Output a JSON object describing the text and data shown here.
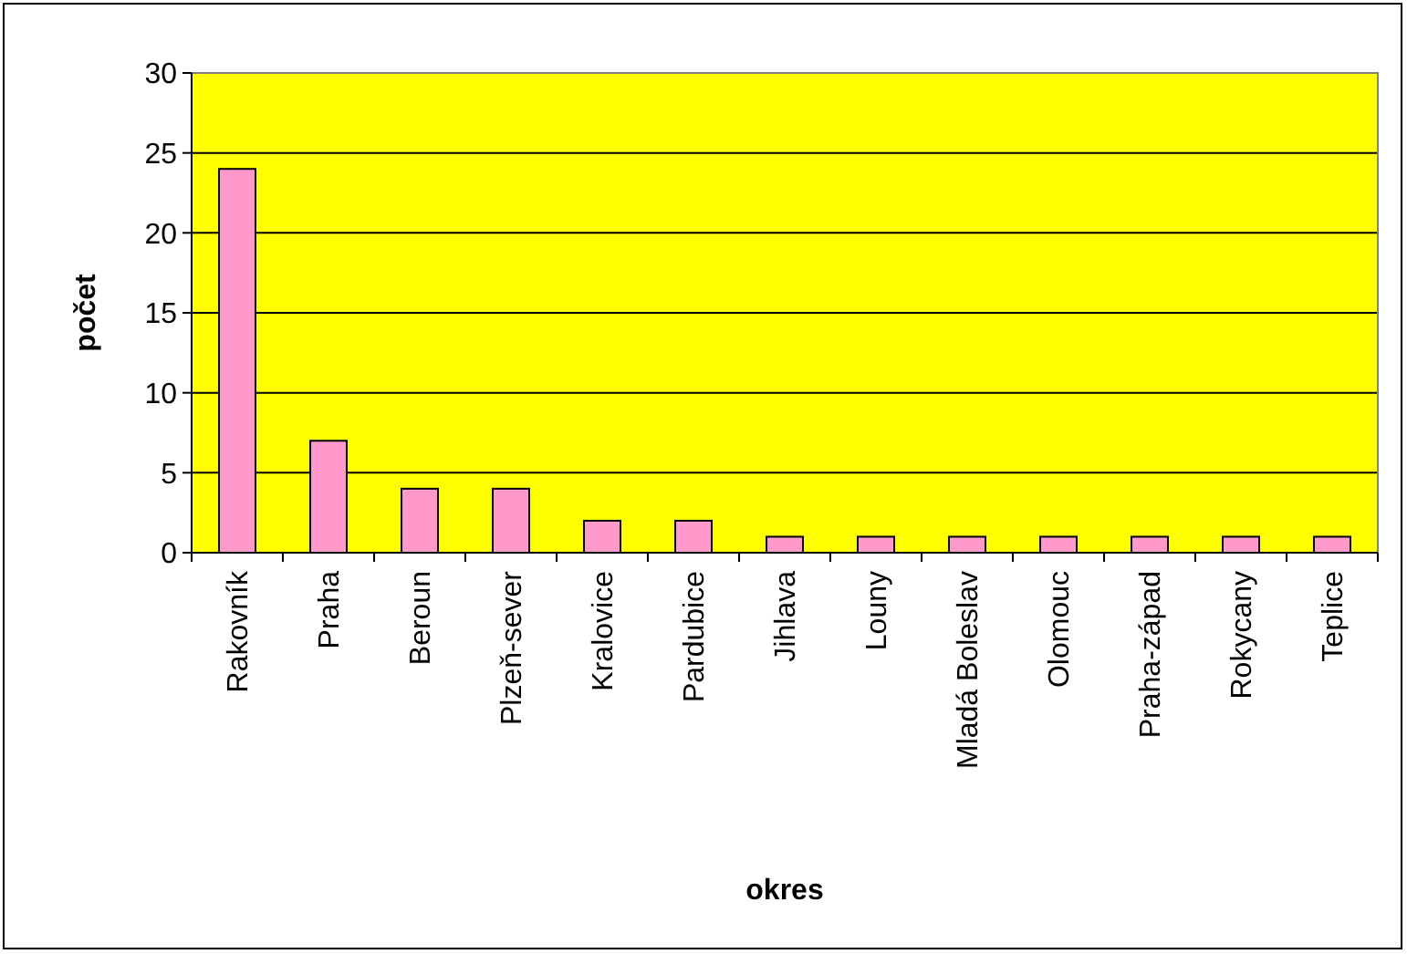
{
  "chart_data": {
    "type": "bar",
    "xlabel": "okres",
    "ylabel": "počet",
    "categories": [
      "Rakovník",
      "Praha",
      "Beroun",
      "Plzeň-sever",
      "Kralovice",
      "Pardubice",
      "Jihlava",
      "Louny",
      "Mladá Boleslav",
      "Olomouc",
      "Praha-západ",
      "Rokycany",
      "Teplice"
    ],
    "values": [
      24,
      7,
      4,
      4,
      2,
      2,
      1,
      1,
      1,
      1,
      1,
      1,
      1
    ],
    "color": "#ff99cc",
    "ylim": [
      0,
      30
    ],
    "yticks": [
      0,
      5,
      10,
      15,
      20,
      25,
      30
    ],
    "grid": "y"
  }
}
